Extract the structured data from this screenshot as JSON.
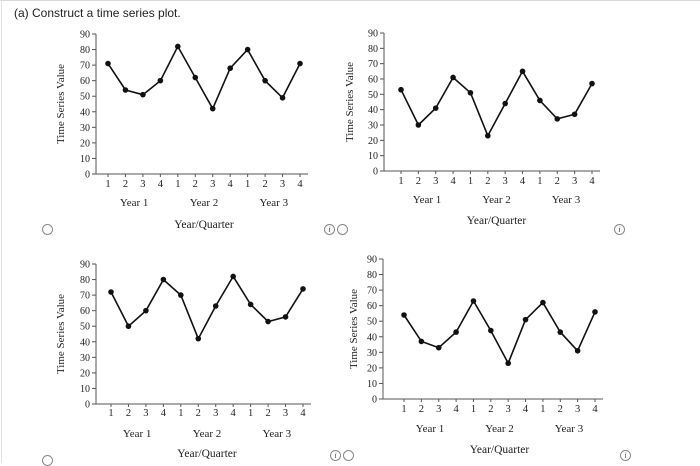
{
  "question": {
    "title": "(a) Construct a time series plot."
  },
  "chart_data": [
    {
      "type": "line",
      "ylabel": "Time Series Value",
      "xlabel": "Year/Quarter",
      "ylim": [
        0,
        90
      ],
      "yticks": [
        0,
        10,
        20,
        30,
        40,
        50,
        60,
        70,
        80,
        90
      ],
      "quarters": [
        "1",
        "2",
        "3",
        "4",
        "1",
        "2",
        "3",
        "4",
        "1",
        "2",
        "3",
        "4"
      ],
      "years": [
        "Year 1",
        "Year 2",
        "Year 3"
      ],
      "values": [
        71,
        54,
        51,
        60,
        82,
        62,
        42,
        68,
        80,
        60,
        49,
        71
      ]
    },
    {
      "type": "line",
      "ylabel": "Time Series Value",
      "xlabel": "Year/Quarter",
      "ylim": [
        0,
        90
      ],
      "yticks": [
        0,
        10,
        20,
        30,
        40,
        50,
        60,
        70,
        80,
        90
      ],
      "quarters": [
        "1",
        "2",
        "3",
        "4",
        "1",
        "2",
        "3",
        "4",
        "1",
        "2",
        "3",
        "4"
      ],
      "years": [
        "Year 1",
        "Year 2",
        "Year 3"
      ],
      "values": [
        53,
        30,
        41,
        61,
        51,
        23,
        44,
        65,
        46,
        34,
        37,
        57
      ]
    },
    {
      "type": "line",
      "ylabel": "Time Series Value",
      "xlabel": "Year/Quarter",
      "ylim": [
        0,
        90
      ],
      "yticks": [
        0,
        10,
        20,
        30,
        40,
        50,
        60,
        70,
        80,
        90
      ],
      "quarters": [
        "1",
        "2",
        "3",
        "4",
        "1",
        "2",
        "3",
        "4",
        "1",
        "2",
        "3",
        "4"
      ],
      "years": [
        "Year 1",
        "Year 2",
        "Year 3"
      ],
      "values": [
        72,
        50,
        60,
        80,
        70,
        42,
        63,
        82,
        64,
        53,
        56,
        74
      ]
    },
    {
      "type": "line",
      "ylabel": "Time Series Value",
      "xlabel": "Year/Quarter",
      "ylim": [
        0,
        90
      ],
      "yticks": [
        0,
        10,
        20,
        30,
        40,
        50,
        60,
        70,
        80,
        90
      ],
      "quarters": [
        "1",
        "2",
        "3",
        "4",
        "1",
        "2",
        "3",
        "4",
        "1",
        "2",
        "3",
        "4"
      ],
      "years": [
        "Year 1",
        "Year 2",
        "Year 3"
      ],
      "values": [
        54,
        37,
        33,
        43,
        63,
        44,
        23,
        51,
        62,
        43,
        31,
        56
      ]
    }
  ],
  "options": {
    "radio_icon": "radio-circle",
    "info_icon": "info-icon",
    "info_glyph": "i"
  }
}
